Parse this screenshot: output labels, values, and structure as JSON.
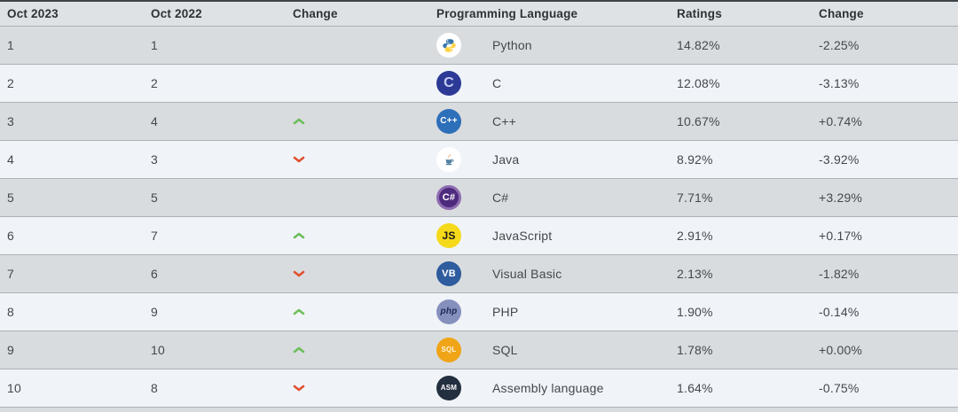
{
  "header": {
    "rank_2023": "Oct 2023",
    "rank_2022": "Oct 2022",
    "change": "Change",
    "language": "Programming Language",
    "ratings": "Ratings",
    "ratings_change": "Change"
  },
  "colors": {
    "row_gray": "#d9dcde",
    "row_light": "#f0f4f8",
    "up_arrow": "#6cbe5a",
    "down_arrow": "#e04f2f",
    "header_bg": "#dfe2e4"
  },
  "rows": [
    {
      "rank_2023": "1",
      "rank_2022": "1",
      "change": "none",
      "language": "Python",
      "ratings": "14.82%",
      "ratings_change": "-2.25%",
      "icon": {
        "name": "python-icon",
        "type": "python",
        "bg": "#ffffff"
      }
    },
    {
      "rank_2023": "2",
      "rank_2022": "2",
      "change": "none",
      "language": "C",
      "ratings": "12.08%",
      "ratings_change": "-3.13%",
      "icon": {
        "name": "c-icon",
        "type": "text",
        "bg": "#2c3a96",
        "fg": "#c7cdf2",
        "label": "C",
        "size": "16px",
        "weight": "800"
      }
    },
    {
      "rank_2023": "3",
      "rank_2022": "4",
      "change": "up",
      "language": "C++",
      "ratings": "10.67%",
      "ratings_change": "+0.74%",
      "icon": {
        "name": "cpp-icon",
        "type": "text",
        "bg": "#2e6fb9",
        "fg": "#ffffff",
        "label": "C++",
        "size": "10px",
        "weight": "800"
      }
    },
    {
      "rank_2023": "4",
      "rank_2022": "3",
      "change": "down",
      "language": "Java",
      "ratings": "8.92%",
      "ratings_change": "-3.92%",
      "icon": {
        "name": "java-icon",
        "type": "java",
        "bg": "#ffffff"
      }
    },
    {
      "rank_2023": "5",
      "rank_2022": "5",
      "change": "none",
      "language": "C#",
      "ratings": "7.71%",
      "ratings_change": "+3.29%",
      "icon": {
        "name": "csharp-icon",
        "type": "text",
        "bg": "#4e2a7e",
        "fg": "#ffffff",
        "label": "C#",
        "size": "11px",
        "weight": "800",
        "ring": "#8d6cb0"
      }
    },
    {
      "rank_2023": "6",
      "rank_2022": "7",
      "change": "up",
      "language": "JavaScript",
      "ratings": "2.91%",
      "ratings_change": "+0.17%",
      "icon": {
        "name": "javascript-icon",
        "type": "text",
        "bg": "#f5d91b",
        "fg": "#1a1a1a",
        "label": "JS",
        "size": "12px",
        "weight": "800"
      }
    },
    {
      "rank_2023": "7",
      "rank_2022": "6",
      "change": "down",
      "language": "Visual Basic",
      "ratings": "2.13%",
      "ratings_change": "-1.82%",
      "icon": {
        "name": "visual-basic-icon",
        "type": "text",
        "bg": "#2e5c9e",
        "fg": "#ffffff",
        "label": "VB",
        "size": "11px",
        "weight": "800"
      }
    },
    {
      "rank_2023": "8",
      "rank_2022": "9",
      "change": "up",
      "language": "PHP",
      "ratings": "1.90%",
      "ratings_change": "-0.14%",
      "icon": {
        "name": "php-icon",
        "type": "text",
        "bg": "#8690bd",
        "fg": "#1d2a56",
        "label": "php",
        "size": "10px",
        "weight": "800",
        "style": "italic"
      }
    },
    {
      "rank_2023": "9",
      "rank_2022": "10",
      "change": "up",
      "language": "SQL",
      "ratings": "1.78%",
      "ratings_change": "+0.00%",
      "icon": {
        "name": "sql-icon",
        "type": "text",
        "bg": "#f0a417",
        "fg": "#fff6dd",
        "label": "SQL",
        "size": "8px",
        "weight": "800"
      }
    },
    {
      "rank_2023": "10",
      "rank_2022": "8",
      "change": "down",
      "language": "Assembly language",
      "ratings": "1.64%",
      "ratings_change": "-0.75%",
      "icon": {
        "name": "assembly-icon",
        "type": "text",
        "bg": "#232e3e",
        "fg": "#ffffff",
        "label": "ASM",
        "size": "8px",
        "weight": "800"
      }
    }
  ]
}
